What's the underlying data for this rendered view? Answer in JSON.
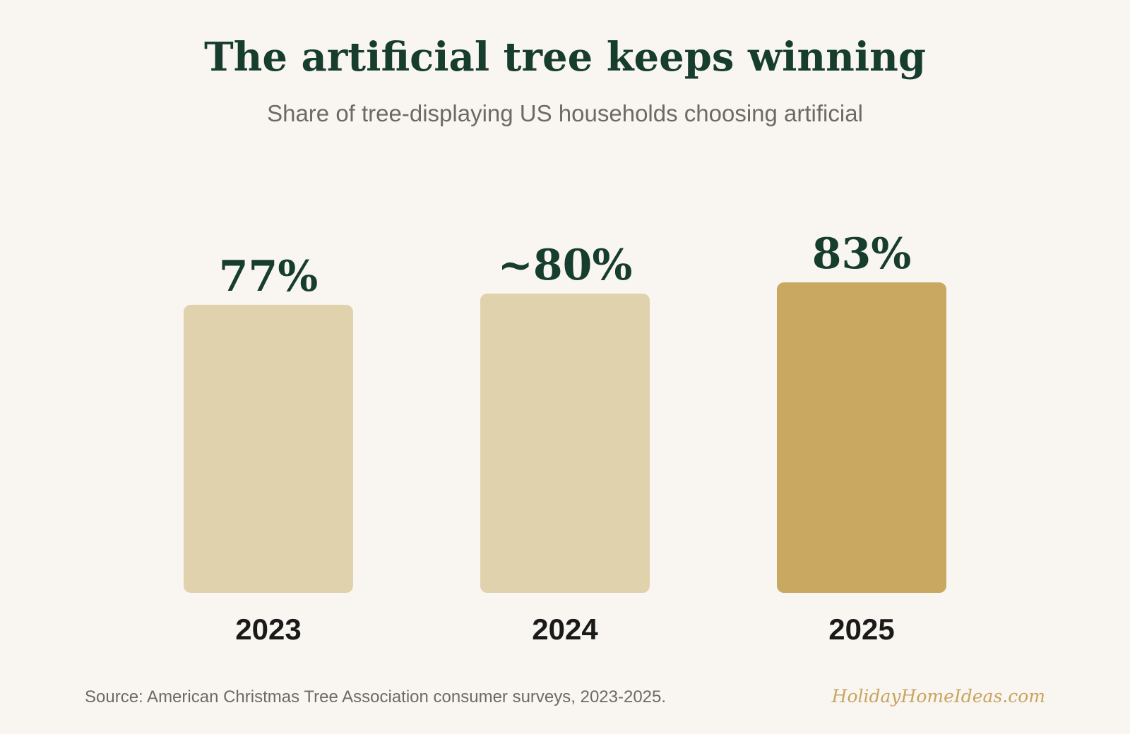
{
  "title": "The artificial tree keeps winning",
  "subtitle": "Share of tree-displaying US households choosing artificial",
  "footer": {
    "source": "Source: American Christmas Tree Association consumer surveys, 2023-2025.",
    "brand": "HolidayHomeIdeas.com"
  },
  "colors": {
    "background": "#f9f6f1",
    "bar": "#e1d2ae",
    "bar_highlight": "#c9a862",
    "value_label": "#163d2e",
    "category_label": "#1a1a1a"
  },
  "chart_data": {
    "type": "bar",
    "categories": [
      "2023",
      "2024",
      "2025"
    ],
    "values": [
      77,
      80,
      83
    ],
    "value_labels": [
      "77%",
      "~80%",
      "83%"
    ],
    "highlight_index": 2,
    "title": "The artificial tree keeps winning",
    "subtitle": "Share of tree-displaying US households choosing artificial",
    "ylim": [
      0,
      100
    ],
    "grid": false,
    "legend": "none"
  }
}
